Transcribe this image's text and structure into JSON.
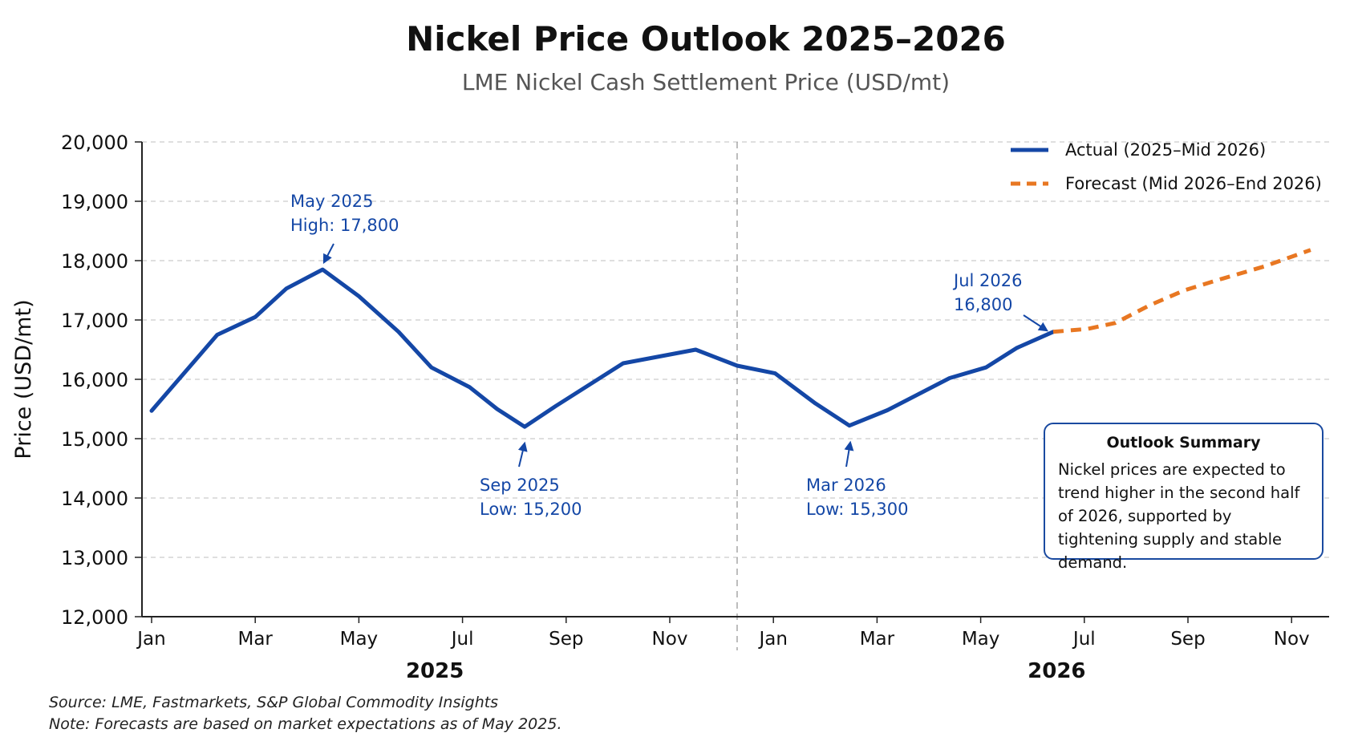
{
  "chart_data": {
    "type": "line",
    "title": "Nickel Price Outlook 2025–2026",
    "subtitle": "LME Nickel Cash Settlement Price (USD/mt)",
    "ylabel": "Price (USD/mt)",
    "ylim": [
      12000,
      20000
    ],
    "yticks": [
      "12,000",
      "13,000",
      "14,000",
      "15,000",
      "16,000",
      "17,000",
      "18,000",
      "19,000",
      "20,000"
    ],
    "ytick_values": [
      12000,
      13000,
      14000,
      15000,
      16000,
      17000,
      18000,
      19000,
      20000
    ],
    "xlim": [
      "2025-01-01",
      "2026-12-01"
    ],
    "xticks": [
      {
        "label": "Jan",
        "date": "2025-01-01"
      },
      {
        "label": "Mar",
        "date": "2025-03-01"
      },
      {
        "label": "May",
        "date": "2025-05-01"
      },
      {
        "label": "Jul",
        "date": "2025-07-01"
      },
      {
        "label": "Sep",
        "date": "2025-09-01"
      },
      {
        "label": "Nov",
        "date": "2025-11-01"
      },
      {
        "label": "Jan",
        "date": "2026-01-01"
      },
      {
        "label": "Mar",
        "date": "2026-03-01"
      },
      {
        "label": "May",
        "date": "2026-05-01"
      },
      {
        "label": "Jul",
        "date": "2026-07-01"
      },
      {
        "label": "Sep",
        "date": "2026-09-01"
      },
      {
        "label": "Nov",
        "date": "2026-11-01"
      }
    ],
    "year_labels": [
      {
        "label": "2025",
        "center": "2025-06-15"
      },
      {
        "label": "2026",
        "center": "2026-06-15"
      }
    ],
    "year_divider": "2025-12-10",
    "grid": true,
    "legend_position": "top-right",
    "series": [
      {
        "name": "Actual (2025–Mid 2026)",
        "color": "#1447a6",
        "style": "solid",
        "x": [
          "2025-01-01",
          "2025-02-09",
          "2025-03-01",
          "2025-03-19",
          "2025-04-10",
          "2025-05-01",
          "2025-05-24",
          "2025-06-13",
          "2025-07-05",
          "2025-07-21",
          "2025-08-07",
          "2025-08-25",
          "2025-10-04",
          "2025-11-16",
          "2025-12-10",
          "2026-01-02",
          "2026-01-25",
          "2026-02-15",
          "2026-03-07",
          "2026-04-13",
          "2026-05-04",
          "2026-05-22",
          "2026-06-13"
        ],
        "y": [
          15470,
          16750,
          17050,
          17530,
          17850,
          17400,
          16800,
          16200,
          15870,
          15500,
          15200,
          15550,
          16270,
          16500,
          16230,
          16100,
          15600,
          15220,
          15480,
          16020,
          16200,
          16530,
          16800
        ]
      },
      {
        "name": "Forecast (Mid 2026–End 2026)",
        "color": "#e87722",
        "style": "dashed",
        "x": [
          "2026-06-13",
          "2026-07-03",
          "2026-07-19",
          "2026-08-09",
          "2026-08-29",
          "2026-09-19",
          "2026-10-15",
          "2026-11-12"
        ],
        "y": [
          16800,
          16850,
          16950,
          17250,
          17500,
          17680,
          17900,
          18180
        ]
      }
    ],
    "annotations": [
      {
        "lines": [
          "May 2025",
          "High: 17,800"
        ]
      },
      {
        "lines": [
          "Sep 2025",
          "Low: 15,200"
        ]
      },
      {
        "lines": [
          "Mar 2026",
          "Low: 15,300"
        ]
      },
      {
        "lines": [
          "Jul 2026",
          "16,800"
        ]
      }
    ],
    "annotation_color": "#1447a6"
  },
  "summary": {
    "title": "Outlook Summary",
    "text": "Nickel prices are expected to trend higher in the second half of 2026, supported by tightening supply and stable demand."
  },
  "footer": {
    "source": "Source: LME, Fastmarkets, S&P Global Commodity Insights",
    "note": "Note: Forecasts are based on market expectations as of May 2025."
  }
}
